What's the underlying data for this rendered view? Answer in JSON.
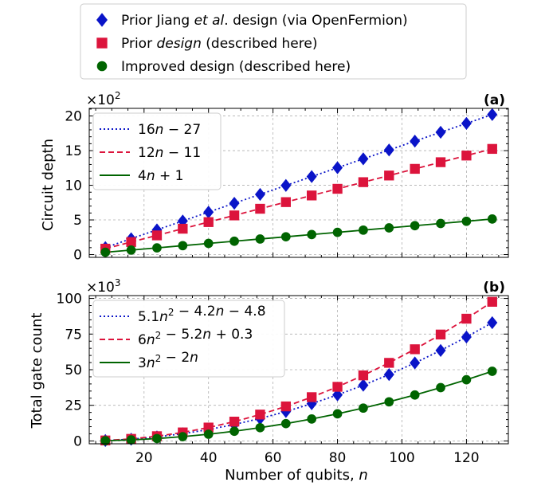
{
  "legend_top": [
    {
      "pre": "Prior Jiang ",
      "ital": "et al",
      "post": ". design (via OpenFermion)",
      "color": "#0a14c8",
      "marker": "diamond"
    },
    {
      "pre": "Prior ",
      "ital": "design",
      "post": " (described here)",
      "color": "#dc143c",
      "marker": "square"
    },
    {
      "pre": "Improved design (described here)",
      "ital": "",
      "post": "",
      "color": "#006400",
      "marker": "circle"
    }
  ],
  "xlabel": "Number of qubits, n",
  "chart_data": [
    {
      "type": "line",
      "panel_label": "(a)",
      "ylabel": "Circuit depth",
      "multiplier": "×10",
      "multiplier_exp": "2",
      "x": [
        8,
        16,
        24,
        32,
        40,
        48,
        56,
        64,
        72,
        80,
        88,
        96,
        104,
        112,
        120,
        128
      ],
      "xlim": [
        3,
        133
      ],
      "ylim": [
        -0.4,
        21.1
      ],
      "xticks": [
        20,
        40,
        60,
        80,
        100,
        120
      ],
      "yticks": [
        0,
        5,
        10,
        15,
        20
      ],
      "series": [
        {
          "name": "Prior Jiang et al. design",
          "fit": "16n − 27",
          "color": "#0a14c8",
          "marker": "diamond",
          "dash": "2,3",
          "values": [
            1.01,
            2.29,
            3.57,
            4.85,
            6.13,
            7.41,
            8.69,
            9.97,
            11.25,
            12.53,
            13.81,
            15.09,
            16.37,
            17.65,
            18.93,
            20.21
          ]
        },
        {
          "name": "Prior design",
          "fit": "12n − 11",
          "color": "#dc143c",
          "marker": "square",
          "dash": "7,4",
          "values": [
            0.85,
            1.81,
            2.77,
            3.73,
            4.69,
            5.65,
            6.61,
            7.57,
            8.53,
            9.49,
            10.45,
            11.41,
            12.37,
            13.33,
            14.29,
            15.25
          ]
        },
        {
          "name": "Improved design",
          "fit": "4n + 1",
          "color": "#006400",
          "marker": "circle",
          "dash": "",
          "values": [
            0.33,
            0.65,
            0.97,
            1.29,
            1.61,
            1.93,
            2.25,
            2.57,
            2.89,
            3.21,
            3.53,
            3.85,
            4.17,
            4.49,
            4.81,
            5.13
          ]
        }
      ],
      "legend": [
        {
          "text": "16n − 27",
          "color": "#0a14c8",
          "dash": "2,3"
        },
        {
          "text": "12n − 11",
          "color": "#dc143c",
          "dash": "7,4"
        },
        {
          "text": "4n + 1",
          "color": "#006400",
          "dash": ""
        }
      ]
    },
    {
      "type": "line",
      "panel_label": "(b)",
      "ylabel": "Total gate count",
      "multiplier": "×10",
      "multiplier_exp": "3",
      "x": [
        8,
        16,
        24,
        32,
        40,
        48,
        56,
        64,
        72,
        80,
        88,
        96,
        104,
        112,
        120,
        128
      ],
      "xlim": [
        3,
        133
      ],
      "ylim": [
        -2,
        102
      ],
      "xticks": [
        20,
        40,
        60,
        80,
        100,
        120
      ],
      "yticks": [
        0,
        25,
        50,
        75,
        100
      ],
      "series": [
        {
          "name": "Prior Jiang et al. design",
          "fit": "5.1n² − 4.2n − 4.8",
          "color": "#0a14c8",
          "marker": "diamond",
          "dash": "2,3",
          "values": [
            0.29,
            1.23,
            2.83,
            5.08,
            7.99,
            11.55,
            15.76,
            20.62,
            26.13,
            32.3,
            39.12,
            46.6,
            54.72,
            63.5,
            72.93,
            83.02
          ]
        },
        {
          "name": "Prior design",
          "fit": "6n² − 5.2n + 0.3",
          "color": "#dc143c",
          "marker": "square",
          "dash": "7,4",
          "values": [
            0.34,
            1.45,
            3.33,
            5.98,
            9.39,
            13.57,
            18.52,
            24.24,
            30.73,
            37.98,
            46.01,
            54.8,
            64.35,
            74.68,
            85.78,
            97.64
          ]
        },
        {
          "name": "Improved design",
          "fit": "3n² − 2n",
          "color": "#006400",
          "marker": "circle",
          "dash": "",
          "values": [
            0.18,
            0.74,
            1.68,
            3.01,
            4.72,
            6.82,
            9.3,
            12.16,
            15.41,
            19.04,
            23.06,
            27.46,
            32.24,
            37.41,
            42.96,
            48.9
          ]
        }
      ],
      "legend": [
        {
          "text": "5.1n² − 4.2n − 4.8",
          "color": "#0a14c8",
          "dash": "2,3"
        },
        {
          "text": "6n² − 5.2n + 0.3",
          "color": "#dc143c",
          "dash": "7,4"
        },
        {
          "text": "3n² − 2n",
          "color": "#006400",
          "dash": ""
        }
      ]
    }
  ]
}
